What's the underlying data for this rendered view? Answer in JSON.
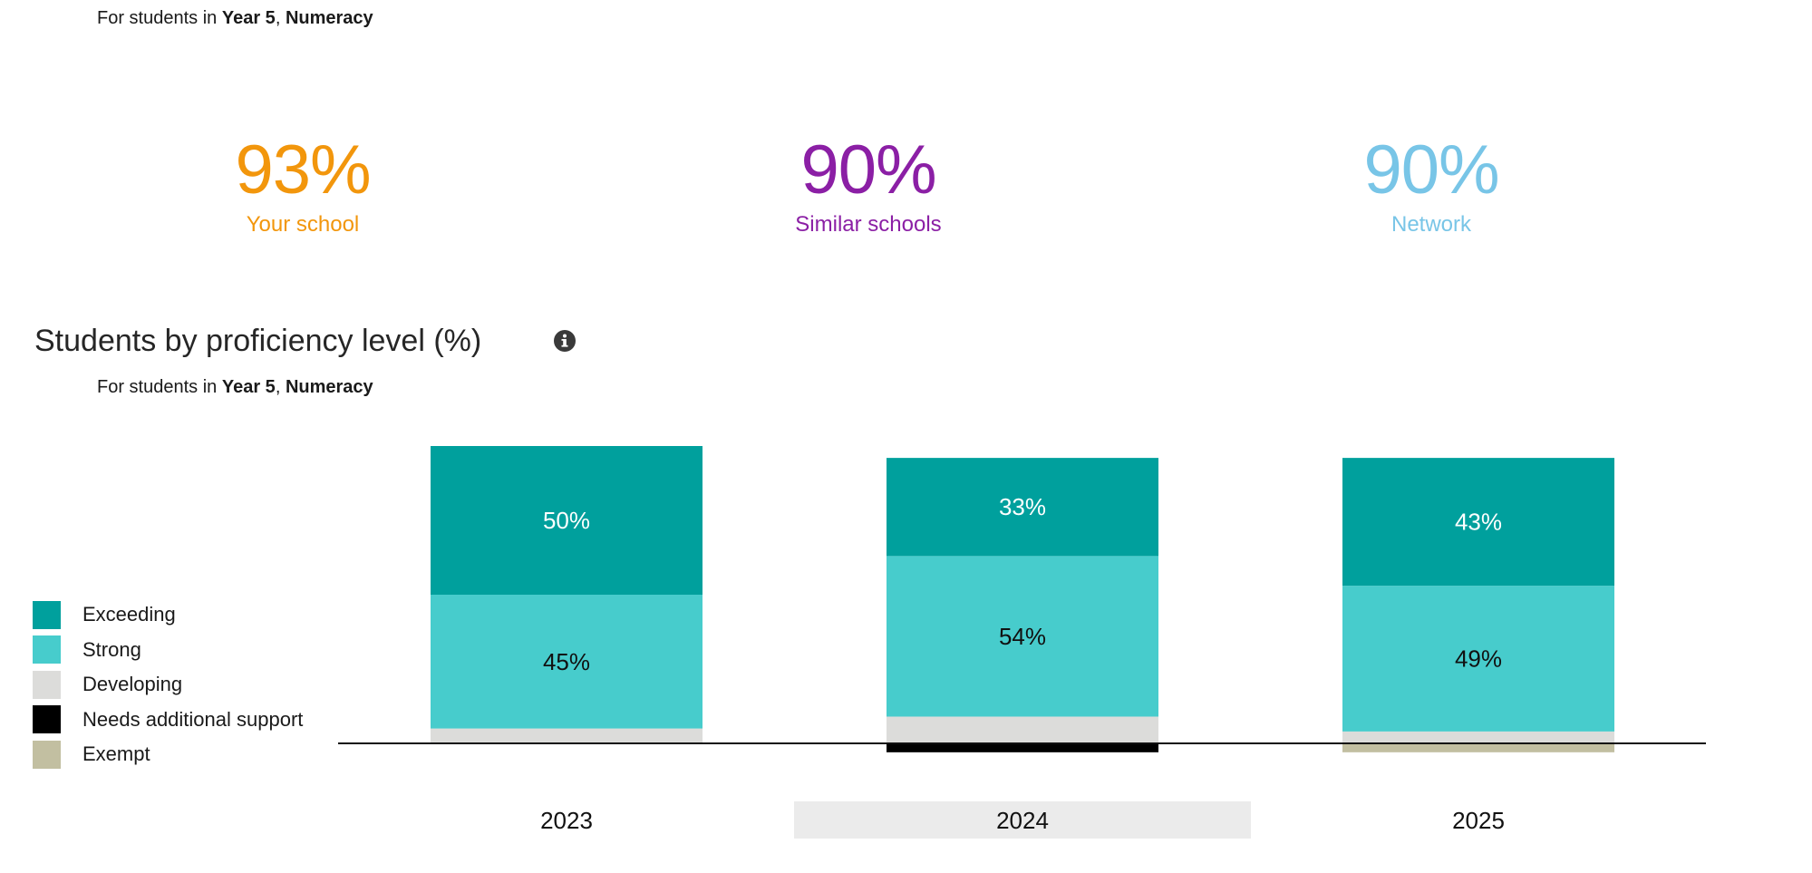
{
  "header": {
    "subline_prefix": "For students in",
    "year": "Year 5",
    "separator": ",",
    "domain": "Numeracy"
  },
  "stats": [
    {
      "value": "93%",
      "label": "Your school",
      "color": "#f2960c"
    },
    {
      "value": "90%",
      "label": "Similar schools",
      "color": "#8b1fa5"
    },
    {
      "value": "90%",
      "label": "Network",
      "color": "#78c5e7"
    }
  ],
  "section": {
    "title": "Students by proficiency level (%)",
    "info_icon": "info-circle-icon",
    "subline_prefix": "For students in",
    "year": "Year 5",
    "separator": ",",
    "domain": "Numeracy"
  },
  "legend": [
    {
      "label": "Exceeding",
      "color": "#00a09d"
    },
    {
      "label": "Strong",
      "color": "#47cccc"
    },
    {
      "label": "Developing",
      "color": "#dcdcda"
    },
    {
      "label": "Needs additional support",
      "color": "#000000"
    },
    {
      "label": "Exempt",
      "color": "#c2bfa1"
    }
  ],
  "chart_data": {
    "type": "bar",
    "stacked": true,
    "categories": [
      "2023",
      "2024",
      "2025"
    ],
    "highlighted_category": "2024",
    "series": [
      {
        "name": "Exceeding",
        "color": "#00a09d",
        "values": [
          50,
          33,
          43
        ],
        "labels": [
          "50%",
          "33%",
          "43%"
        ],
        "label_color": "#ffffff"
      },
      {
        "name": "Strong",
        "color": "#47cccc",
        "values": [
          45,
          54,
          49
        ],
        "labels": [
          "45%",
          "54%",
          "49%"
        ],
        "label_color": "#111111"
      },
      {
        "name": "Developing",
        "color": "#dcdcda",
        "values": [
          5,
          9,
          4
        ],
        "labels": [
          "",
          "",
          ""
        ]
      },
      {
        "name": "Needs additional support",
        "color": "#000000",
        "values": [
          0,
          3,
          0
        ],
        "labels": [
          "",
          "",
          ""
        ],
        "below_baseline": true
      },
      {
        "name": "Exempt",
        "color": "#c2bfa1",
        "values": [
          0,
          0,
          3
        ],
        "labels": [
          "",
          "",
          ""
        ],
        "below_baseline": true
      }
    ],
    "legend_position": "left",
    "grid": false
  }
}
